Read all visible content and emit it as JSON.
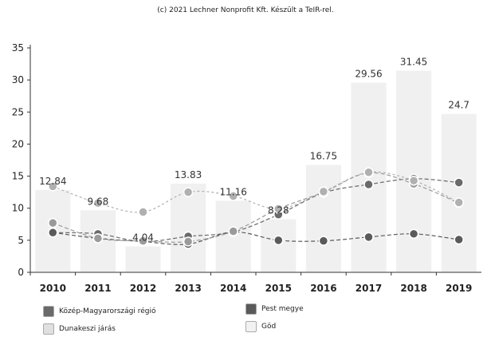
{
  "credit": "(c) 2021 Lechner Nonprofit Kft. Készült a TeIR-rel.",
  "chart_data": {
    "type": "line",
    "categories": [
      "2010",
      "2011",
      "2012",
      "2013",
      "2014",
      "2015",
      "2016",
      "2017",
      "2018",
      "2019"
    ],
    "ylim": [
      0,
      35
    ],
    "yticks": [
      0,
      5,
      10,
      15,
      20,
      25,
      30,
      35
    ],
    "grid": false,
    "legend_position": "bottom-left",
    "bar_series": {
      "name": "Göd",
      "values": [
        12.84,
        9.68,
        4.04,
        13.83,
        11.16,
        8.28,
        16.75,
        29.56,
        31.45,
        24.7
      ],
      "labels": [
        "12.84",
        "9.68",
        "4.04",
        "13.83",
        "11.16",
        "8.28",
        "16.75",
        "29.56",
        "31.45",
        "24.7"
      ],
      "color": "#f0f0f0"
    },
    "series": [
      {
        "name": "Közép-Magyarországi régió",
        "values": [
          6.2,
          6.0,
          4.8,
          5.6,
          6.3,
          9.0,
          12.4,
          13.7,
          14.6,
          14.0
        ],
        "color": "#6a6a6a"
      },
      {
        "name": "Pest megye",
        "values": [
          6.2,
          5.3,
          4.8,
          4.4,
          6.3,
          5.0,
          4.9,
          5.5,
          6.0,
          5.1
        ],
        "color": "#5a5a5a"
      },
      {
        "name": "Dunakeszi járás",
        "values": [
          7.7,
          5.3,
          4.9,
          4.8,
          6.4,
          9.9,
          12.5,
          15.5,
          13.8,
          10.8
        ],
        "color": "#9a9a9a"
      },
      {
        "name": "Göd",
        "values": [
          13.4,
          10.8,
          9.4,
          12.5,
          11.9,
          9.9,
          12.6,
          15.6,
          14.3,
          10.9
        ],
        "color": "#b0b0b0"
      }
    ],
    "legend": [
      {
        "label": "Közép-Magyarországi régió",
        "color": "#6a6a6a"
      },
      {
        "label": "Pest megye",
        "color": "#5a5a5a"
      },
      {
        "label": "Dunakeszi járás",
        "color": "#e0e0e0"
      },
      {
        "label": "Göd",
        "color": "#f2f2f2"
      }
    ]
  }
}
